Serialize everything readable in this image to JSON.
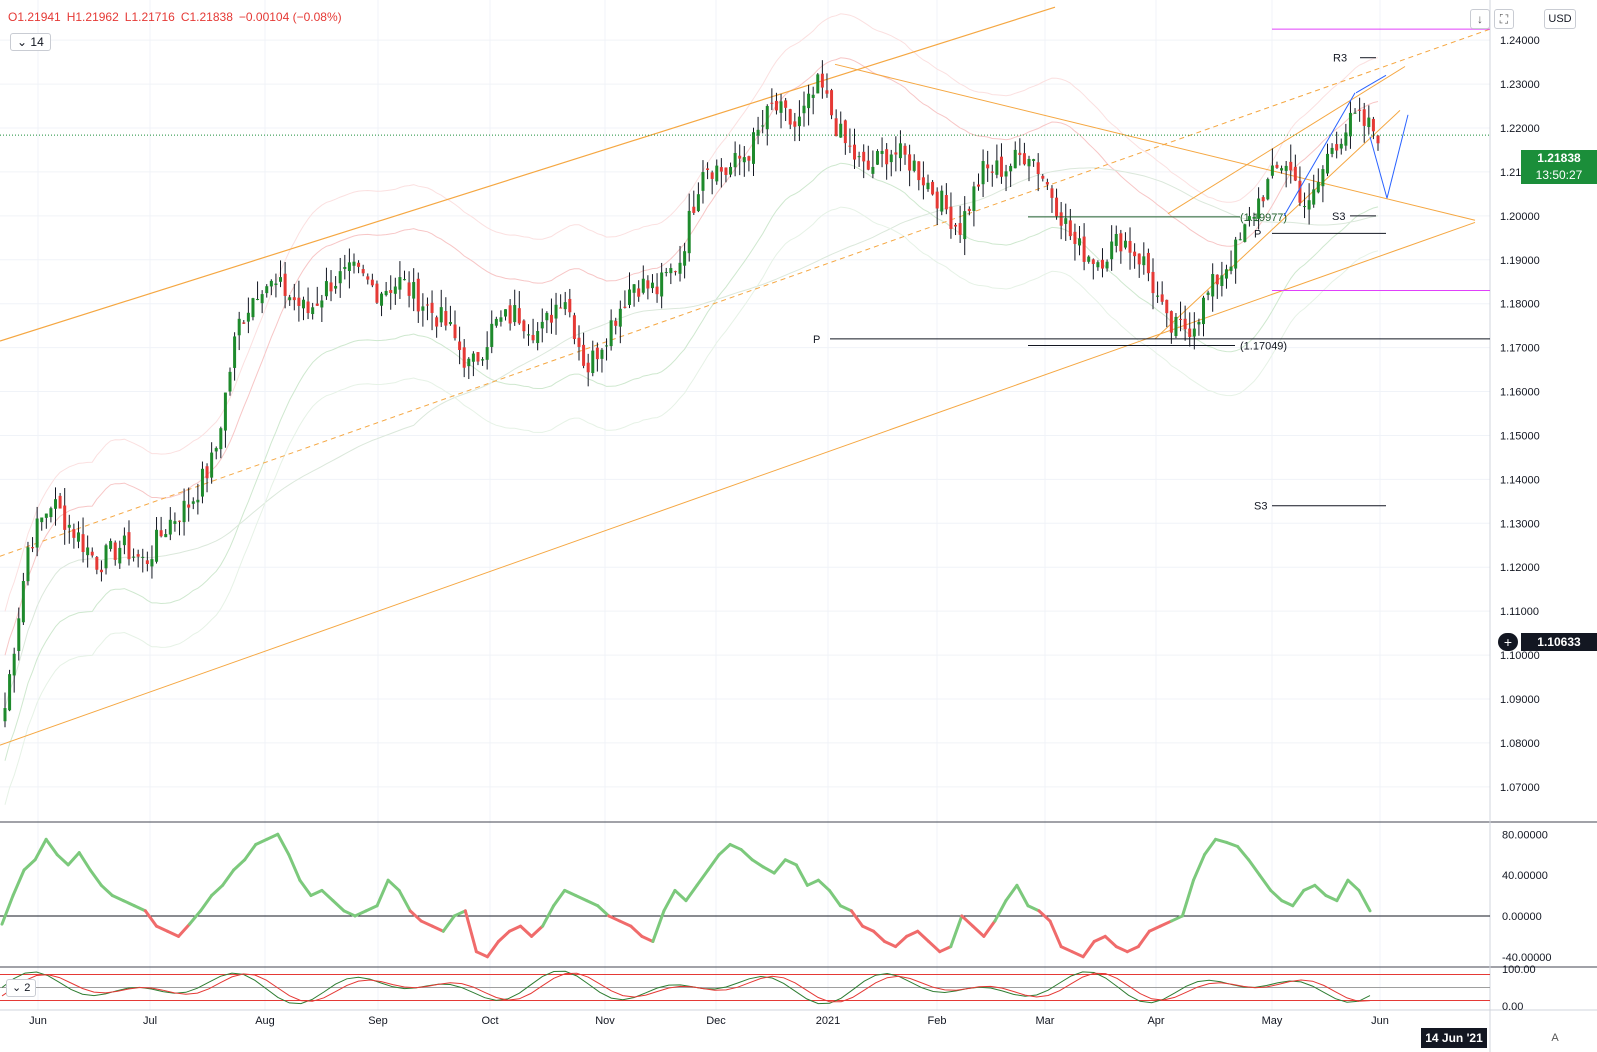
{
  "legend": {
    "open": "O1.21941",
    "high": "H1.21962",
    "low": "L1.21716",
    "close": "C1.21838",
    "change": "−0.00104 (−0.08%)"
  },
  "interval_box": "14",
  "sub_indicator_box": "2",
  "currency": "USD",
  "toolbar": {
    "down_icon": "arrow-down-icon",
    "fullscreen_icon": "fullscreen-icon"
  },
  "last_price": {
    "value": "1.21838",
    "countdown": "13:50:27",
    "color": "#1b8e3a"
  },
  "crosshair_price": {
    "value": "1.10633",
    "color": "#131722"
  },
  "time_badge": "14 Jun '21",
  "auto_label": "A",
  "annotations": {
    "r3": "R3",
    "s3_upper": "S3",
    "s3_lower": "S3",
    "p_left": "P",
    "p_right": "P",
    "level_low": "(1.17049)",
    "level_mid": "(1.19977)"
  },
  "colors": {
    "up": "#1e8a2c",
    "down": "#e53935",
    "trend": "#f5a742",
    "pivot": "#131722",
    "magenta": "#e040fb",
    "projection": "#2962ff",
    "osc_up": "#7cc97c",
    "osc_down": "#f06b6b"
  },
  "chart_data": {
    "type": "candlestick",
    "instrument_quote": "USD",
    "x_ticks": [
      "Jun",
      "Jul",
      "Aug",
      "Sep",
      "Oct",
      "Nov",
      "Dec",
      "2021",
      "Feb",
      "Mar",
      "Apr",
      "May",
      "Jun"
    ],
    "y_ticks": [
      "1.24000",
      "1.23000",
      "1.22000",
      "1.21000",
      "1.20000",
      "1.19000",
      "1.18000",
      "1.17000",
      "1.16000",
      "1.15000",
      "1.14000",
      "1.13000",
      "1.12000",
      "1.11000",
      "1.10000",
      "1.09000",
      "1.08000",
      "1.07000"
    ],
    "ylim": [
      1.062,
      1.248
    ],
    "close_path": [
      [
        "Jun",
        1.088
      ],
      [
        "Jun",
        1.125
      ],
      [
        "Jun",
        1.135
      ],
      [
        "Jun",
        1.128
      ],
      [
        "Jun",
        1.121
      ],
      [
        "Jul",
        1.125
      ],
      [
        "Jul",
        1.121
      ],
      [
        "Jul",
        1.13
      ],
      [
        "Jul",
        1.135
      ],
      [
        "Jul",
        1.145
      ],
      [
        "Aug",
        1.175
      ],
      [
        "Aug",
        1.185
      ],
      [
        "Aug",
        1.183
      ],
      [
        "Aug",
        1.178
      ],
      [
        "Aug",
        1.185
      ],
      [
        "Sep",
        1.187
      ],
      [
        "Sep",
        1.183
      ],
      [
        "Sep",
        1.185
      ],
      [
        "Sep",
        1.18
      ],
      [
        "Sep",
        1.175
      ],
      [
        "Oct",
        1.165
      ],
      [
        "Oct",
        1.175
      ],
      [
        "Oct",
        1.178
      ],
      [
        "Oct",
        1.173
      ],
      [
        "Oct",
        1.183
      ],
      [
        "Nov",
        1.165
      ],
      [
        "Nov",
        1.175
      ],
      [
        "Nov",
        1.185
      ],
      [
        "Nov",
        1.183
      ],
      [
        "Nov",
        1.19
      ],
      [
        "Dec",
        1.212
      ],
      [
        "Dec",
        1.21
      ],
      [
        "Dec",
        1.215
      ],
      [
        "Dec",
        1.225
      ],
      [
        "Dec",
        1.22
      ],
      [
        "2021",
        1.23
      ],
      [
        "2021",
        1.217
      ],
      [
        "2021",
        1.21
      ],
      [
        "2021",
        1.215
      ],
      [
        "2021",
        1.212
      ],
      [
        "Feb",
        1.205
      ],
      [
        "Feb",
        1.197
      ],
      [
        "Feb",
        1.21
      ],
      [
        "Feb",
        1.211
      ],
      [
        "Feb",
        1.215
      ],
      [
        "Mar",
        1.205
      ],
      [
        "Mar",
        1.193
      ],
      [
        "Mar",
        1.19
      ],
      [
        "Mar",
        1.195
      ],
      [
        "Mar",
        1.189
      ],
      [
        "Apr",
        1.174
      ],
      [
        "Apr",
        1.175
      ],
      [
        "Apr",
        1.185
      ],
      [
        "Apr",
        1.193
      ],
      [
        "Apr",
        1.205
      ],
      [
        "May",
        1.213
      ],
      [
        "May",
        1.201
      ],
      [
        "May",
        1.216
      ],
      [
        "May",
        1.222
      ],
      [
        "May",
        1.219
      ]
    ],
    "levels": [
      {
        "name": "R3",
        "value": 1.236
      },
      {
        "name": "S3",
        "value": 1.2
      },
      {
        "name": "P",
        "value": 1.196
      },
      {
        "name": "P",
        "value": 1.172
      },
      {
        "name": "S3",
        "value": 1.134
      },
      {
        "name": "(1.17049)",
        "value": 1.17049
      },
      {
        "name": "(1.19977)",
        "value": 1.19977
      }
    ],
    "oscillator": {
      "y_ticks": [
        "80.00000",
        "40.00000",
        "0.00000",
        "-40.00000"
      ],
      "ylim": [
        -50,
        92
      ],
      "values": [
        -8,
        20,
        45,
        55,
        75,
        60,
        50,
        62,
        45,
        30,
        20,
        15,
        10,
        5,
        -10,
        -15,
        -20,
        -8,
        5,
        20,
        30,
        45,
        55,
        70,
        75,
        80,
        60,
        35,
        20,
        25,
        15,
        5,
        0,
        5,
        10,
        35,
        25,
        5,
        -5,
        -10,
        -15,
        0,
        5,
        -35,
        -40,
        -25,
        -15,
        -10,
        -20,
        -10,
        10,
        25,
        20,
        15,
        10,
        0,
        -5,
        -10,
        -20,
        -25,
        5,
        25,
        15,
        30,
        45,
        60,
        70,
        65,
        55,
        48,
        42,
        55,
        50,
        30,
        35,
        25,
        10,
        5,
        -10,
        -15,
        -25,
        -30,
        -20,
        -15,
        -25,
        -35,
        -30,
        0,
        -10,
        -20,
        -5,
        15,
        30,
        10,
        5,
        -5,
        -30,
        -35,
        -40,
        -25,
        -20,
        -30,
        -35,
        -30,
        -15,
        -10,
        -5,
        0,
        35,
        60,
        75,
        72,
        68,
        55,
        40,
        25,
        15,
        10,
        25,
        30,
        20,
        15,
        35,
        25,
        5
      ]
    },
    "stochastic": {
      "y_ticks": [
        "100.00",
        "0.00"
      ],
      "ylim": [
        -5,
        105
      ]
    }
  }
}
